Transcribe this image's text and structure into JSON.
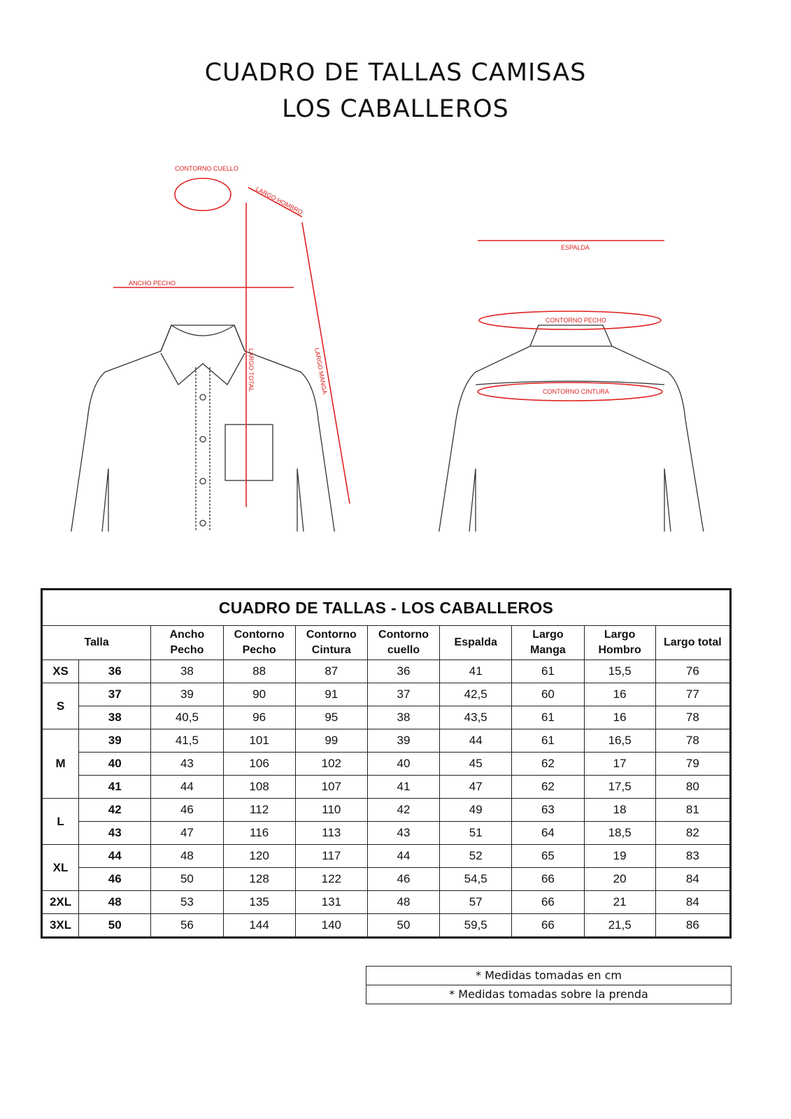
{
  "title_line1": "CUADRO DE TALLAS CAMISAS",
  "title_line2": "LOS CABALLEROS",
  "diagram_labels": {
    "contorno_cuello": "CONTORNO CUELLO",
    "largo_hombro": "LARGO HOMBRO",
    "ancho_pecho": "ANCHO PECHO",
    "largo_total": "LARGO TOTAL",
    "largo_manga": "LARGO MANGA",
    "espalda": "ESPALDA",
    "contorno_pecho": "CONTORNO PECHO",
    "contorno_cintura": "CONTORNO CINTURA"
  },
  "accent_color": "#d22222",
  "table": {
    "title": "CUADRO DE TALLAS - LOS CABALLEROS",
    "headers": [
      [
        "Talla"
      ],
      [
        "Ancho",
        "Pecho"
      ],
      [
        "Contorno",
        "Pecho"
      ],
      [
        "Contorno",
        "Cintura"
      ],
      [
        "Contorno",
        "cuello"
      ],
      [
        "Espalda"
      ],
      [
        "Largo",
        "Manga"
      ],
      [
        "Largo",
        "Hombro"
      ],
      [
        "Largo total"
      ]
    ],
    "groups": [
      {
        "size": "XS",
        "rows": [
          [
            "36",
            "38",
            "88",
            "87",
            "36",
            "41",
            "61",
            "15,5",
            "76"
          ]
        ]
      },
      {
        "size": "S",
        "rows": [
          [
            "37",
            "39",
            "90",
            "91",
            "37",
            "42,5",
            "60",
            "16",
            "77"
          ],
          [
            "38",
            "40,5",
            "96",
            "95",
            "38",
            "43,5",
            "61",
            "16",
            "78"
          ]
        ]
      },
      {
        "size": "M",
        "rows": [
          [
            "39",
            "41,5",
            "101",
            "99",
            "39",
            "44",
            "61",
            "16,5",
            "78"
          ],
          [
            "40",
            "43",
            "106",
            "102",
            "40",
            "45",
            "62",
            "17",
            "79"
          ],
          [
            "41",
            "44",
            "108",
            "107",
            "41",
            "47",
            "62",
            "17,5",
            "80"
          ]
        ]
      },
      {
        "size": "L",
        "rows": [
          [
            "42",
            "46",
            "112",
            "110",
            "42",
            "49",
            "63",
            "18",
            "81"
          ],
          [
            "43",
            "47",
            "116",
            "113",
            "43",
            "51",
            "64",
            "18,5",
            "82"
          ]
        ]
      },
      {
        "size": "XL",
        "rows": [
          [
            "44",
            "48",
            "120",
            "117",
            "44",
            "52",
            "65",
            "19",
            "83"
          ],
          [
            "46",
            "50",
            "128",
            "122",
            "46",
            "54,5",
            "66",
            "20",
            "84"
          ]
        ]
      },
      {
        "size": "2XL",
        "rows": [
          [
            "48",
            "53",
            "135",
            "131",
            "48",
            "57",
            "66",
            "21",
            "84"
          ]
        ]
      },
      {
        "size": "3XL",
        "rows": [
          [
            "50",
            "56",
            "144",
            "140",
            "50",
            "59,5",
            "66",
            "21,5",
            "86"
          ]
        ]
      }
    ]
  },
  "notes": [
    "* Medidas tomadas en cm",
    "* Medidas tomadas sobre la prenda"
  ]
}
